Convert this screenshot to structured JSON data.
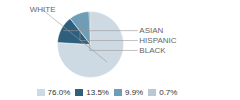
{
  "chart_data": {
    "type": "pie",
    "categories": [
      "WHITE",
      "ASIAN",
      "HISPANIC",
      "BLACK"
    ],
    "values": [
      76.0,
      13.5,
      9.9,
      0.7
    ],
    "colors": [
      "#cdd9e3",
      "#2e5f7c",
      "#6e9db8",
      "#b8c8d4"
    ],
    "value_labels": [
      "76.0%",
      "13.5%",
      "9.9%",
      "0.7%"
    ],
    "legend": "bottom"
  }
}
